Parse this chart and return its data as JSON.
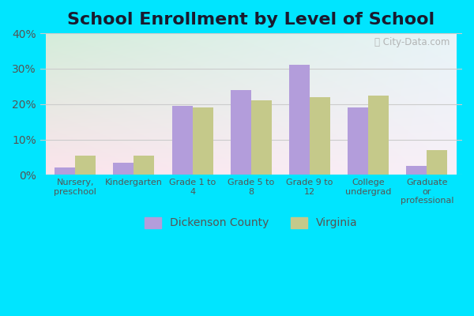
{
  "title": "School Enrollment by Level of School",
  "categories": [
    "Nursery,\npreschool",
    "Kindergarten",
    "Grade 1 to\n4",
    "Grade 5 to\n8",
    "Grade 9 to\n12",
    "College\nundergrad",
    "Graduate\nor\nprofessional"
  ],
  "dickenson_county": [
    2.0,
    3.5,
    19.5,
    24.0,
    31.0,
    19.0,
    2.5
  ],
  "virginia": [
    5.5,
    5.5,
    19.0,
    21.0,
    22.0,
    22.5,
    7.0
  ],
  "bar_color_dickenson": "#b39ddb",
  "bar_color_virginia": "#c5c98a",
  "legend_labels": [
    "Dickenson County",
    "Virginia"
  ],
  "ylim": [
    0,
    40
  ],
  "yticks": [
    0,
    10,
    20,
    30,
    40
  ],
  "ytick_labels": [
    "0%",
    "10%",
    "20%",
    "30%",
    "40%"
  ],
  "fig_bg_color": "#00e5ff",
  "title_fontsize": 16,
  "title_color": "#1a1a2e",
  "watermark": "City-Data.com",
  "grid_color": "#cccccc",
  "tick_color": "#555555"
}
